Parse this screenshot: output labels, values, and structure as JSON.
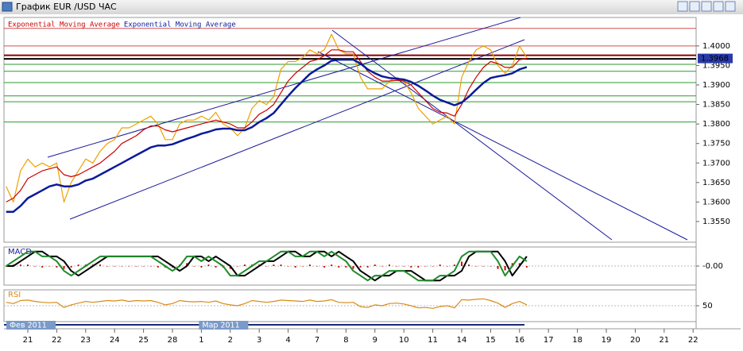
{
  "chart_data": [
    {
      "type": "line",
      "title": "График EUR /USD ЧАС",
      "categories": [
        null,
        null,
        null,
        "21",
        null,
        null,
        null,
        "22",
        null,
        null,
        null,
        "23",
        null,
        null,
        null,
        "24",
        null,
        null,
        null,
        "25",
        null,
        null,
        null,
        "28",
        null,
        null,
        null,
        "1",
        null,
        null,
        null,
        "2",
        null,
        null,
        null,
        "3",
        null,
        null,
        null,
        "4",
        null,
        null,
        null,
        "7",
        null,
        null,
        null,
        "8",
        null,
        null,
        null,
        "9",
        null,
        null,
        null,
        "10",
        null,
        null,
        null,
        "11",
        null,
        null,
        null,
        "14",
        null,
        null,
        null,
        "15",
        null,
        null,
        null,
        "16",
        null,
        null,
        null,
        "17",
        null,
        null,
        null,
        "18",
        null,
        null,
        null,
        "19",
        null,
        null,
        null,
        "20",
        null,
        null,
        null,
        "21",
        null,
        null,
        null,
        "22"
      ],
      "period_labels": [
        "Фев 2011",
        "Мар 2011"
      ],
      "series": [
        {
          "color": "#f0a000",
          "values": [
            1.364,
            1.36,
            1.368,
            1.371,
            1.369,
            1.37,
            1.369,
            1.37,
            1.36,
            1.365,
            1.368,
            1.371,
            1.37,
            1.373,
            1.375,
            1.376,
            1.379,
            1.379,
            1.38,
            1.381,
            1.382,
            1.38,
            1.376,
            1.376,
            1.38,
            1.381,
            1.381,
            1.382,
            1.381,
            1.383,
            1.38,
            1.379,
            1.377,
            1.379,
            1.384,
            1.386,
            1.385,
            1.387,
            1.394,
            1.396,
            1.396,
            1.397,
            1.399,
            1.398,
            1.399,
            1.403,
            1.399,
            1.398,
            1.398,
            1.392,
            1.389,
            1.389,
            1.389,
            1.391,
            1.392,
            1.391,
            1.388,
            1.384,
            1.382,
            1.38,
            1.381,
            1.382,
            1.38,
            1.392,
            1.396,
            1.399,
            1.4,
            1.399,
            1.395,
            1.393,
            1.395,
            1.4,
            1.397,
            null,
            null,
            null,
            null,
            null,
            null,
            null,
            null,
            null,
            null,
            null,
            null,
            null,
            null,
            null,
            null,
            null,
            null,
            null,
            null,
            null,
            null,
            null
          ]
        },
        {
          "name": "Exponential Moving Average",
          "color": "#cc0000",
          "values": [
            1.36,
            1.361,
            1.363,
            1.366,
            1.367,
            1.368,
            1.3685,
            1.369,
            1.367,
            1.3665,
            1.367,
            1.368,
            1.369,
            1.37,
            1.3715,
            1.373,
            1.375,
            1.376,
            1.377,
            1.3785,
            1.3795,
            1.3795,
            1.3785,
            1.378,
            1.3785,
            1.379,
            1.3795,
            1.38,
            1.3805,
            1.381,
            1.3805,
            1.38,
            1.379,
            1.379,
            1.3805,
            1.3825,
            1.3835,
            1.385,
            1.388,
            1.391,
            1.393,
            1.3945,
            1.396,
            1.3965,
            1.3975,
            1.399,
            1.399,
            1.3985,
            1.3985,
            1.396,
            1.3935,
            1.392,
            1.391,
            1.391,
            1.3912,
            1.391,
            1.39,
            1.388,
            1.386,
            1.384,
            1.383,
            1.3828,
            1.382,
            1.385,
            1.389,
            1.392,
            1.3945,
            1.396,
            1.3955,
            1.3945,
            1.3945,
            1.3965,
            1.3968,
            null,
            null,
            null,
            null,
            null,
            null,
            null,
            null,
            null,
            null,
            null,
            null,
            null,
            null,
            null,
            null,
            null,
            null,
            null,
            null,
            null,
            null,
            null
          ]
        },
        {
          "name": "Exponential Moving Average",
          "color": "#0a1a9a",
          "values": [
            1.3575,
            1.3575,
            1.359,
            1.361,
            1.362,
            1.363,
            1.364,
            1.3645,
            1.364,
            1.364,
            1.3645,
            1.3655,
            1.366,
            1.367,
            1.368,
            1.369,
            1.37,
            1.371,
            1.372,
            1.373,
            1.374,
            1.3745,
            1.3745,
            1.3748,
            1.3755,
            1.3762,
            1.3768,
            1.3775,
            1.378,
            1.3786,
            1.3788,
            1.3788,
            1.3784,
            1.3784,
            1.3792,
            1.3805,
            1.3815,
            1.3828,
            1.385,
            1.3872,
            1.3892,
            1.391,
            1.3928,
            1.394,
            1.395,
            1.3962,
            1.3965,
            1.3965,
            1.3965,
            1.3955,
            1.394,
            1.393,
            1.3922,
            1.3918,
            1.3916,
            1.3914,
            1.3908,
            1.3898,
            1.3886,
            1.3873,
            1.3862,
            1.3855,
            1.3848,
            1.3855,
            1.387,
            1.3888,
            1.3905,
            1.3918,
            1.3922,
            1.3925,
            1.393,
            1.394,
            1.3946,
            null,
            null,
            null,
            null,
            null,
            null,
            null,
            null,
            null,
            null,
            null,
            null,
            null,
            null,
            null,
            null,
            null,
            null,
            null,
            null,
            null,
            null,
            null
          ]
        }
      ],
      "ylim": [
        1.3497,
        1.4073
      ],
      "yticks": [
        {
          "value": 1.355,
          "label": "1.3550"
        },
        {
          "value": 1.36,
          "label": "1.3600"
        },
        {
          "value": 1.365,
          "label": "1.3650"
        },
        {
          "value": 1.37,
          "label": "1.3700"
        },
        {
          "value": 1.375,
          "label": "1.3750"
        },
        {
          "value": 1.38,
          "label": "1.3800"
        },
        {
          "value": 1.385,
          "label": "1.3850"
        },
        {
          "value": 1.39,
          "label": "1.3900"
        },
        {
          "value": 1.395,
          "label": "1.3950"
        },
        {
          "value": 1.4,
          "label": "1.4000"
        }
      ],
      "levels": [
        {
          "value": 1.4045,
          "color": "#d05050"
        },
        {
          "value": 1.4,
          "color": "#d05050"
        },
        {
          "value": 1.3976,
          "color": "#8b0000"
        },
        {
          "value": 1.3967,
          "color": "#000000"
        },
        {
          "value": 1.3953,
          "color": "#2e9a2e"
        },
        {
          "value": 1.3935,
          "color": "#2e9a2e"
        },
        {
          "value": 1.3906,
          "color": "#2e9a2e"
        },
        {
          "value": 1.3872,
          "color": "#2e9a2e"
        },
        {
          "value": 1.3857,
          "color": "#2e9a2e"
        },
        {
          "value": 1.3805,
          "color": "#2e9a2e"
        }
      ],
      "last_price": 1.3968
    },
    {
      "type": "macd",
      "title": "MACD",
      "series": [
        {
          "type": "bar",
          "color": "#cc0000",
          "values": [
            0.0,
            0.0003,
            0.0003,
            0.0003,
            0.0,
            -0.0003,
            0.0,
            -0.0003,
            -0.0006,
            -0.0003,
            0.0003,
            0.0003,
            0.0003,
            0.0003,
            0.0,
            0.0,
            0.0,
            0.0,
            0.0,
            0.0,
            0.0,
            -0.0003,
            -0.0003,
            -0.0003,
            0.0003,
            0.0006,
            0.0,
            -0.0003,
            0.0003,
            -0.0003,
            -0.0003,
            -0.0006,
            0.0,
            0.0003,
            0.0003,
            0.0003,
            0.0,
            0.0003,
            0.0003,
            0.0,
            -0.0003,
            0.0,
            0.0003,
            0.0,
            -0.0003,
            0.0003,
            -0.0003,
            -0.0003,
            -0.0006,
            -0.0003,
            -0.0003,
            0.0003,
            0.0,
            0.0003,
            0.0,
            0.0,
            -0.0003,
            -0.0003,
            0.0,
            0.0,
            0.0003,
            0.0,
            0.0003,
            0.0009,
            0.0003,
            0.0,
            0.0,
            0.0,
            -0.0006,
            -0.0009,
            0.0006,
            0.0006,
            -0.0003,
            null,
            null,
            null,
            null,
            null,
            null,
            null,
            null,
            null,
            null,
            null,
            null,
            null,
            null,
            null,
            null,
            null,
            null,
            null,
            null,
            null,
            null,
            null
          ]
        },
        {
          "type": "line",
          "color": "#000000",
          "values": [
            0.0,
            0.0,
            0.001,
            0.002,
            0.003,
            0.003,
            0.002,
            0.002,
            0.001,
            -0.001,
            -0.002,
            -0.001,
            0.0,
            0.001,
            0.002,
            0.002,
            0.002,
            0.002,
            0.002,
            0.002,
            0.002,
            0.002,
            0.001,
            0.0,
            -0.001,
            0.0,
            0.002,
            0.002,
            0.001,
            0.002,
            0.001,
            0.0,
            -0.002,
            -0.002,
            -0.001,
            0.0,
            0.001,
            0.001,
            0.002,
            0.003,
            0.003,
            0.002,
            0.002,
            0.003,
            0.003,
            0.002,
            0.003,
            0.002,
            0.001,
            -0.001,
            -0.002,
            -0.003,
            -0.002,
            -0.002,
            -0.001,
            -0.001,
            -0.001,
            -0.002,
            -0.003,
            -0.003,
            -0.003,
            -0.002,
            -0.002,
            -0.001,
            0.002,
            0.003,
            0.003,
            0.003,
            0.003,
            0.001,
            -0.002,
            0.0,
            0.002,
            null,
            null,
            null,
            null,
            null,
            null,
            null,
            null,
            null,
            null,
            null,
            null,
            null,
            null,
            null,
            null,
            null,
            null,
            null,
            null,
            null,
            null,
            null
          ]
        },
        {
          "type": "line",
          "color": "#1f8a2a",
          "values": [
            0.0,
            0.001,
            0.002,
            0.003,
            0.003,
            0.002,
            0.002,
            0.001,
            -0.001,
            -0.002,
            -0.001,
            0.0,
            0.001,
            0.002,
            0.002,
            0.002,
            0.002,
            0.002,
            0.002,
            0.002,
            0.002,
            0.001,
            0.0,
            -0.001,
            0.0,
            0.002,
            0.002,
            0.001,
            0.002,
            0.001,
            0.0,
            -0.002,
            -0.002,
            -0.001,
            0.0,
            0.001,
            0.001,
            0.002,
            0.003,
            0.003,
            0.002,
            0.002,
            0.003,
            0.003,
            0.002,
            0.003,
            0.002,
            0.001,
            -0.001,
            -0.002,
            -0.003,
            -0.002,
            -0.002,
            -0.001,
            -0.001,
            -0.001,
            -0.002,
            -0.003,
            -0.003,
            -0.003,
            -0.002,
            -0.002,
            -0.001,
            0.002,
            0.003,
            0.003,
            0.003,
            0.003,
            0.001,
            -0.002,
            0.0,
            0.002,
            0.001,
            null,
            null,
            null,
            null,
            null,
            null,
            null,
            null,
            null,
            null,
            null,
            null,
            null,
            null,
            null,
            null,
            null,
            null,
            null,
            null,
            null,
            null,
            null
          ]
        }
      ],
      "ylim": [
        -0.0038,
        0.0038
      ],
      "yticks": [
        {
          "value": 0,
          "label": "-0.00"
        }
      ]
    },
    {
      "type": "line",
      "title": "RSI",
      "series": [
        {
          "color": "#d98c1a",
          "values": [
            58,
            55,
            62,
            63,
            60,
            58,
            57,
            58,
            46,
            52,
            56,
            60,
            58,
            60,
            62,
            61,
            63,
            60,
            62,
            61,
            62,
            58,
            52,
            55,
            62,
            60,
            59,
            60,
            58,
            61,
            55,
            52,
            50,
            55,
            62,
            60,
            58,
            60,
            63,
            62,
            61,
            60,
            63,
            60,
            61,
            64,
            58,
            57,
            58,
            48,
            46,
            52,
            50,
            55,
            56,
            54,
            50,
            45,
            46,
            44,
            48,
            50,
            45,
            64,
            63,
            65,
            66,
            62,
            56,
            46,
            55,
            60,
            52,
            null,
            null,
            null,
            null,
            null,
            null,
            null,
            null,
            null,
            null,
            null,
            null,
            null,
            null,
            null,
            null,
            null,
            null,
            null,
            null,
            null,
            null,
            null
          ]
        }
      ],
      "ylim": [
        15,
        85
      ],
      "yticks": [
        50
      ]
    }
  ]
}
